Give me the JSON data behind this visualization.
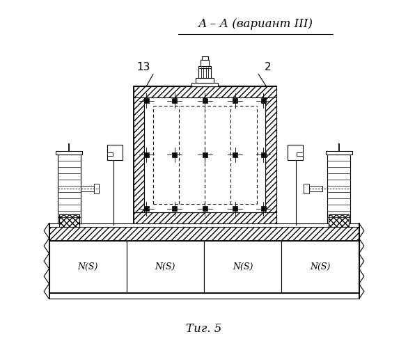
{
  "title": "А – А (вариант III)",
  "fig_label": "Τиг. 5",
  "label_13": "13",
  "label_2": "2",
  "bg_color": "#ffffff",
  "line_color": "#000000",
  "ns_labels": [
    "N(S)",
    "N(S)",
    "N(S)",
    "N(S)"
  ]
}
